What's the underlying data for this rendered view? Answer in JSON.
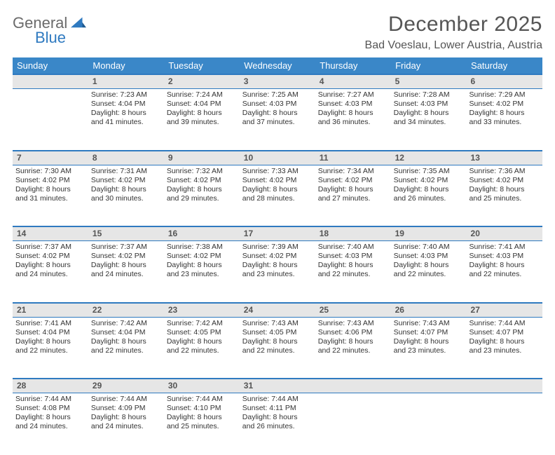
{
  "logo": {
    "line1": "General",
    "line2": "Blue"
  },
  "title": "December 2025",
  "location": "Bad Voeslau, Lower Austria, Austria",
  "colors": {
    "header_bg": "#3a87c8",
    "header_text": "#ffffff",
    "daynum_bg": "#e6e6e6",
    "rule": "#2f7ac0",
    "logo_gray": "#6b6b6b",
    "logo_blue": "#2f7ac0"
  },
  "columns": [
    "Sunday",
    "Monday",
    "Tuesday",
    "Wednesday",
    "Thursday",
    "Friday",
    "Saturday"
  ],
  "weeks": [
    {
      "nums": [
        "",
        "1",
        "2",
        "3",
        "4",
        "5",
        "6"
      ],
      "cells": [
        null,
        {
          "sunrise": "Sunrise: 7:23 AM",
          "sunset": "Sunset: 4:04 PM",
          "day1": "Daylight: 8 hours",
          "day2": "and 41 minutes."
        },
        {
          "sunrise": "Sunrise: 7:24 AM",
          "sunset": "Sunset: 4:04 PM",
          "day1": "Daylight: 8 hours",
          "day2": "and 39 minutes."
        },
        {
          "sunrise": "Sunrise: 7:25 AM",
          "sunset": "Sunset: 4:03 PM",
          "day1": "Daylight: 8 hours",
          "day2": "and 37 minutes."
        },
        {
          "sunrise": "Sunrise: 7:27 AM",
          "sunset": "Sunset: 4:03 PM",
          "day1": "Daylight: 8 hours",
          "day2": "and 36 minutes."
        },
        {
          "sunrise": "Sunrise: 7:28 AM",
          "sunset": "Sunset: 4:03 PM",
          "day1": "Daylight: 8 hours",
          "day2": "and 34 minutes."
        },
        {
          "sunrise": "Sunrise: 7:29 AM",
          "sunset": "Sunset: 4:02 PM",
          "day1": "Daylight: 8 hours",
          "day2": "and 33 minutes."
        }
      ]
    },
    {
      "nums": [
        "7",
        "8",
        "9",
        "10",
        "11",
        "12",
        "13"
      ],
      "cells": [
        {
          "sunrise": "Sunrise: 7:30 AM",
          "sunset": "Sunset: 4:02 PM",
          "day1": "Daylight: 8 hours",
          "day2": "and 31 minutes."
        },
        {
          "sunrise": "Sunrise: 7:31 AM",
          "sunset": "Sunset: 4:02 PM",
          "day1": "Daylight: 8 hours",
          "day2": "and 30 minutes."
        },
        {
          "sunrise": "Sunrise: 7:32 AM",
          "sunset": "Sunset: 4:02 PM",
          "day1": "Daylight: 8 hours",
          "day2": "and 29 minutes."
        },
        {
          "sunrise": "Sunrise: 7:33 AM",
          "sunset": "Sunset: 4:02 PM",
          "day1": "Daylight: 8 hours",
          "day2": "and 28 minutes."
        },
        {
          "sunrise": "Sunrise: 7:34 AM",
          "sunset": "Sunset: 4:02 PM",
          "day1": "Daylight: 8 hours",
          "day2": "and 27 minutes."
        },
        {
          "sunrise": "Sunrise: 7:35 AM",
          "sunset": "Sunset: 4:02 PM",
          "day1": "Daylight: 8 hours",
          "day2": "and 26 minutes."
        },
        {
          "sunrise": "Sunrise: 7:36 AM",
          "sunset": "Sunset: 4:02 PM",
          "day1": "Daylight: 8 hours",
          "day2": "and 25 minutes."
        }
      ]
    },
    {
      "nums": [
        "14",
        "15",
        "16",
        "17",
        "18",
        "19",
        "20"
      ],
      "cells": [
        {
          "sunrise": "Sunrise: 7:37 AM",
          "sunset": "Sunset: 4:02 PM",
          "day1": "Daylight: 8 hours",
          "day2": "and 24 minutes."
        },
        {
          "sunrise": "Sunrise: 7:37 AM",
          "sunset": "Sunset: 4:02 PM",
          "day1": "Daylight: 8 hours",
          "day2": "and 24 minutes."
        },
        {
          "sunrise": "Sunrise: 7:38 AM",
          "sunset": "Sunset: 4:02 PM",
          "day1": "Daylight: 8 hours",
          "day2": "and 23 minutes."
        },
        {
          "sunrise": "Sunrise: 7:39 AM",
          "sunset": "Sunset: 4:02 PM",
          "day1": "Daylight: 8 hours",
          "day2": "and 23 minutes."
        },
        {
          "sunrise": "Sunrise: 7:40 AM",
          "sunset": "Sunset: 4:03 PM",
          "day1": "Daylight: 8 hours",
          "day2": "and 22 minutes."
        },
        {
          "sunrise": "Sunrise: 7:40 AM",
          "sunset": "Sunset: 4:03 PM",
          "day1": "Daylight: 8 hours",
          "day2": "and 22 minutes."
        },
        {
          "sunrise": "Sunrise: 7:41 AM",
          "sunset": "Sunset: 4:03 PM",
          "day1": "Daylight: 8 hours",
          "day2": "and 22 minutes."
        }
      ]
    },
    {
      "nums": [
        "21",
        "22",
        "23",
        "24",
        "25",
        "26",
        "27"
      ],
      "cells": [
        {
          "sunrise": "Sunrise: 7:41 AM",
          "sunset": "Sunset: 4:04 PM",
          "day1": "Daylight: 8 hours",
          "day2": "and 22 minutes."
        },
        {
          "sunrise": "Sunrise: 7:42 AM",
          "sunset": "Sunset: 4:04 PM",
          "day1": "Daylight: 8 hours",
          "day2": "and 22 minutes."
        },
        {
          "sunrise": "Sunrise: 7:42 AM",
          "sunset": "Sunset: 4:05 PM",
          "day1": "Daylight: 8 hours",
          "day2": "and 22 minutes."
        },
        {
          "sunrise": "Sunrise: 7:43 AM",
          "sunset": "Sunset: 4:05 PM",
          "day1": "Daylight: 8 hours",
          "day2": "and 22 minutes."
        },
        {
          "sunrise": "Sunrise: 7:43 AM",
          "sunset": "Sunset: 4:06 PM",
          "day1": "Daylight: 8 hours",
          "day2": "and 22 minutes."
        },
        {
          "sunrise": "Sunrise: 7:43 AM",
          "sunset": "Sunset: 4:07 PM",
          "day1": "Daylight: 8 hours",
          "day2": "and 23 minutes."
        },
        {
          "sunrise": "Sunrise: 7:44 AM",
          "sunset": "Sunset: 4:07 PM",
          "day1": "Daylight: 8 hours",
          "day2": "and 23 minutes."
        }
      ]
    },
    {
      "nums": [
        "28",
        "29",
        "30",
        "31",
        "",
        "",
        ""
      ],
      "cells": [
        {
          "sunrise": "Sunrise: 7:44 AM",
          "sunset": "Sunset: 4:08 PM",
          "day1": "Daylight: 8 hours",
          "day2": "and 24 minutes."
        },
        {
          "sunrise": "Sunrise: 7:44 AM",
          "sunset": "Sunset: 4:09 PM",
          "day1": "Daylight: 8 hours",
          "day2": "and 24 minutes."
        },
        {
          "sunrise": "Sunrise: 7:44 AM",
          "sunset": "Sunset: 4:10 PM",
          "day1": "Daylight: 8 hours",
          "day2": "and 25 minutes."
        },
        {
          "sunrise": "Sunrise: 7:44 AM",
          "sunset": "Sunset: 4:11 PM",
          "day1": "Daylight: 8 hours",
          "day2": "and 26 minutes."
        },
        null,
        null,
        null
      ]
    }
  ]
}
